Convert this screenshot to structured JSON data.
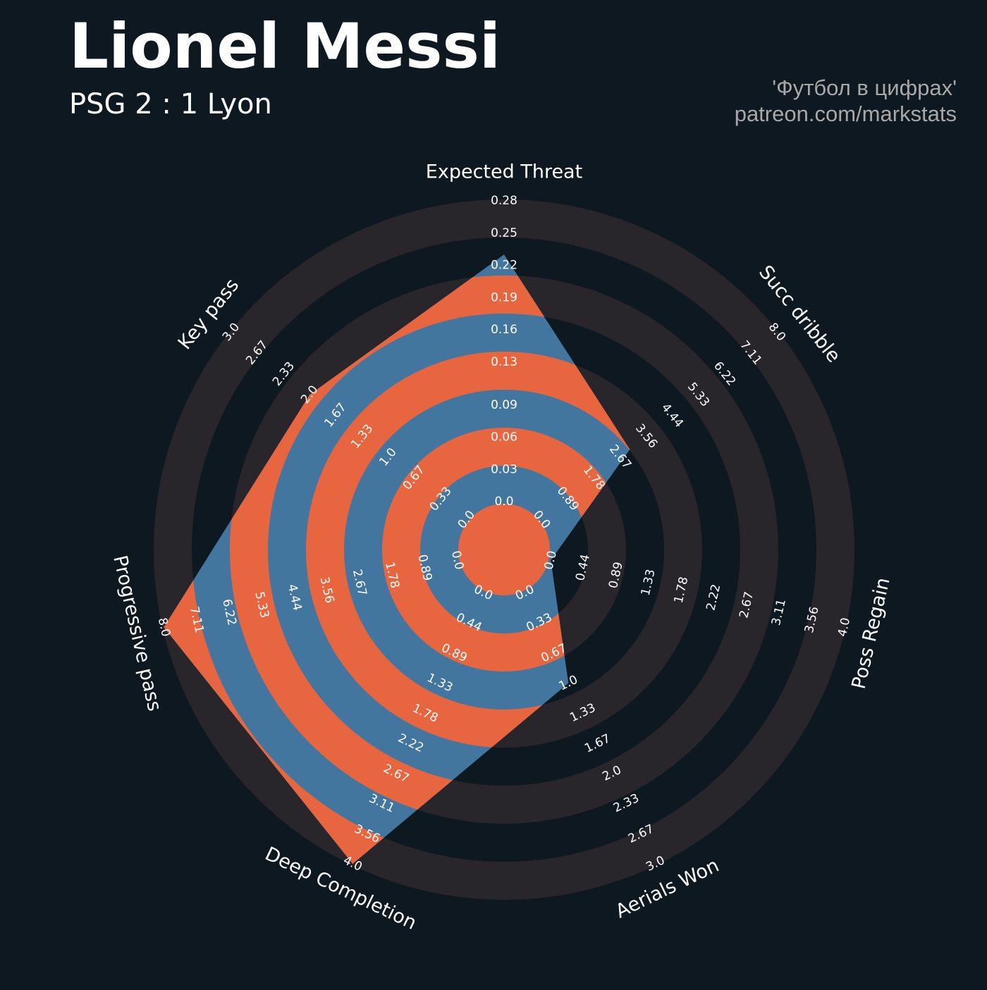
{
  "chart_data": {
    "type": "radar",
    "title": "Lionel Messi",
    "subtitle": "PSG 2 : 1 Lyon",
    "credits": [
      "'Футбол в цифрах'",
      "patreon.com/markstats"
    ],
    "params": [
      "Expected Threat",
      "Succ dribble",
      "Poss Regain",
      "Aerials Won",
      "Deep Completion",
      "Progressive pass",
      "Key pass"
    ],
    "values": [
      0.23,
      3,
      0,
      1,
      4,
      8,
      2
    ],
    "lims": [
      [
        0,
        0.28
      ],
      [
        0,
        8
      ],
      [
        0,
        4
      ],
      [
        0,
        3
      ],
      [
        0,
        4
      ],
      [
        0,
        8
      ],
      [
        0,
        3
      ]
    ],
    "ticks": [
      [
        {
          "value": 0,
          "label": "0.0"
        },
        0.03,
        0.06,
        0.09,
        0.13,
        0.16,
        0.19,
        0.22,
        0.25,
        0.28
      ],
      [
        {
          "value": 0,
          "label": "0.0"
        },
        0.89,
        1.78,
        2.67,
        3.56,
        4.44,
        5.33,
        6.22,
        7.11,
        {
          "value": 8,
          "label": "8.0"
        }
      ],
      [
        {
          "value": 0,
          "label": "0.0"
        },
        0.44,
        0.89,
        1.33,
        1.78,
        2.22,
        2.67,
        3.11,
        3.56,
        {
          "value": 4,
          "label": "4.0"
        }
      ],
      [
        {
          "value": 0,
          "label": "0.0"
        },
        0.33,
        0.67,
        {
          "value": 1,
          "label": "1.0"
        },
        1.33,
        1.67,
        {
          "value": 2,
          "label": "2.0"
        },
        2.33,
        2.67,
        {
          "value": 3,
          "label": "3.0"
        }
      ],
      [
        {
          "value": 0,
          "label": "0.0"
        },
        0.44,
        0.89,
        1.33,
        1.78,
        2.22,
        2.67,
        3.11,
        3.56,
        {
          "value": 4,
          "label": "4.0"
        }
      ],
      [
        {
          "value": 0,
          "label": "0.0"
        },
        0.89,
        1.78,
        2.67,
        3.56,
        4.44,
        5.33,
        6.22,
        7.11,
        {
          "value": 8,
          "label": "8.0"
        }
      ],
      [
        {
          "value": 0,
          "label": "0.0"
        },
        0.33,
        0.67,
        {
          "value": 1,
          "label": "1.0"
        },
        1.33,
        1.67,
        {
          "value": 2,
          "label": "2.0"
        },
        2.33,
        2.67,
        {
          "value": 3,
          "label": "3.0"
        }
      ]
    ],
    "colors": {
      "background": "#0e1820",
      "ring": "#28252b",
      "polygon": "#43769f",
      "polygon_ring": "#e76640"
    }
  }
}
